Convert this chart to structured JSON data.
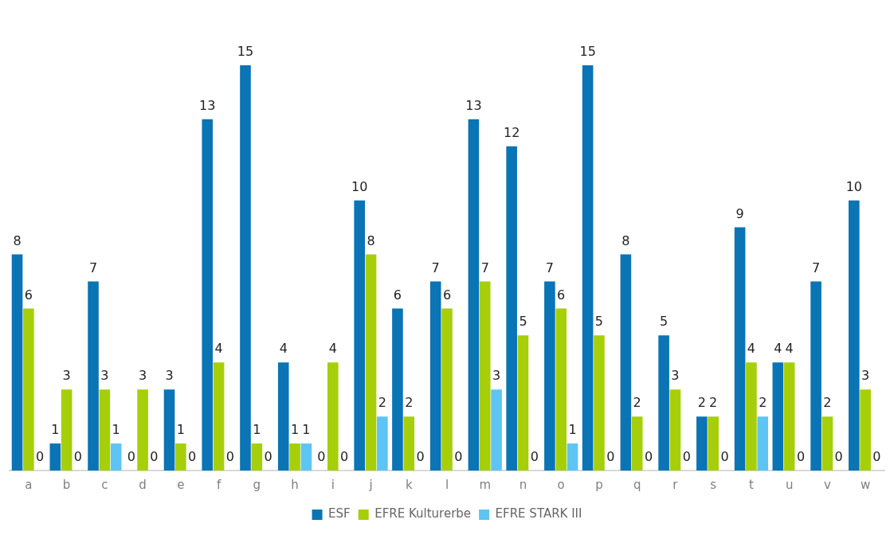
{
  "chart_data": {
    "type": "bar",
    "categories": [
      "a",
      "b",
      "c",
      "d",
      "e",
      "f",
      "g",
      "h",
      "i",
      "j",
      "k",
      "l",
      "m",
      "n",
      "o",
      "p",
      "q",
      "r",
      "s",
      "t",
      "u",
      "v",
      "w"
    ],
    "series": [
      {
        "name": "ESF",
        "color": "#0a74b4",
        "values": [
          8,
          1,
          7,
          0,
          3,
          13,
          15,
          4,
          0,
          10,
          6,
          7,
          13,
          12,
          7,
          15,
          8,
          5,
          2,
          9,
          4,
          7,
          10
        ]
      },
      {
        "name": "EFRE Kulturerbe",
        "color": "#a6cf0a",
        "values": [
          6,
          3,
          3,
          3,
          1,
          4,
          1,
          1,
          4,
          8,
          2,
          6,
          7,
          5,
          6,
          5,
          2,
          3,
          2,
          4,
          4,
          2,
          3
        ]
      },
      {
        "name": "EFRE STARK III",
        "color": "#5ec4f4",
        "values": [
          0,
          0,
          1,
          0,
          0,
          0,
          0,
          1,
          0,
          2,
          0,
          0,
          3,
          0,
          1,
          0,
          0,
          0,
          0,
          2,
          0,
          0,
          0
        ]
      }
    ],
    "data_labels": true,
    "grid": false,
    "legend": "bottom",
    "tick_labels": "x"
  }
}
